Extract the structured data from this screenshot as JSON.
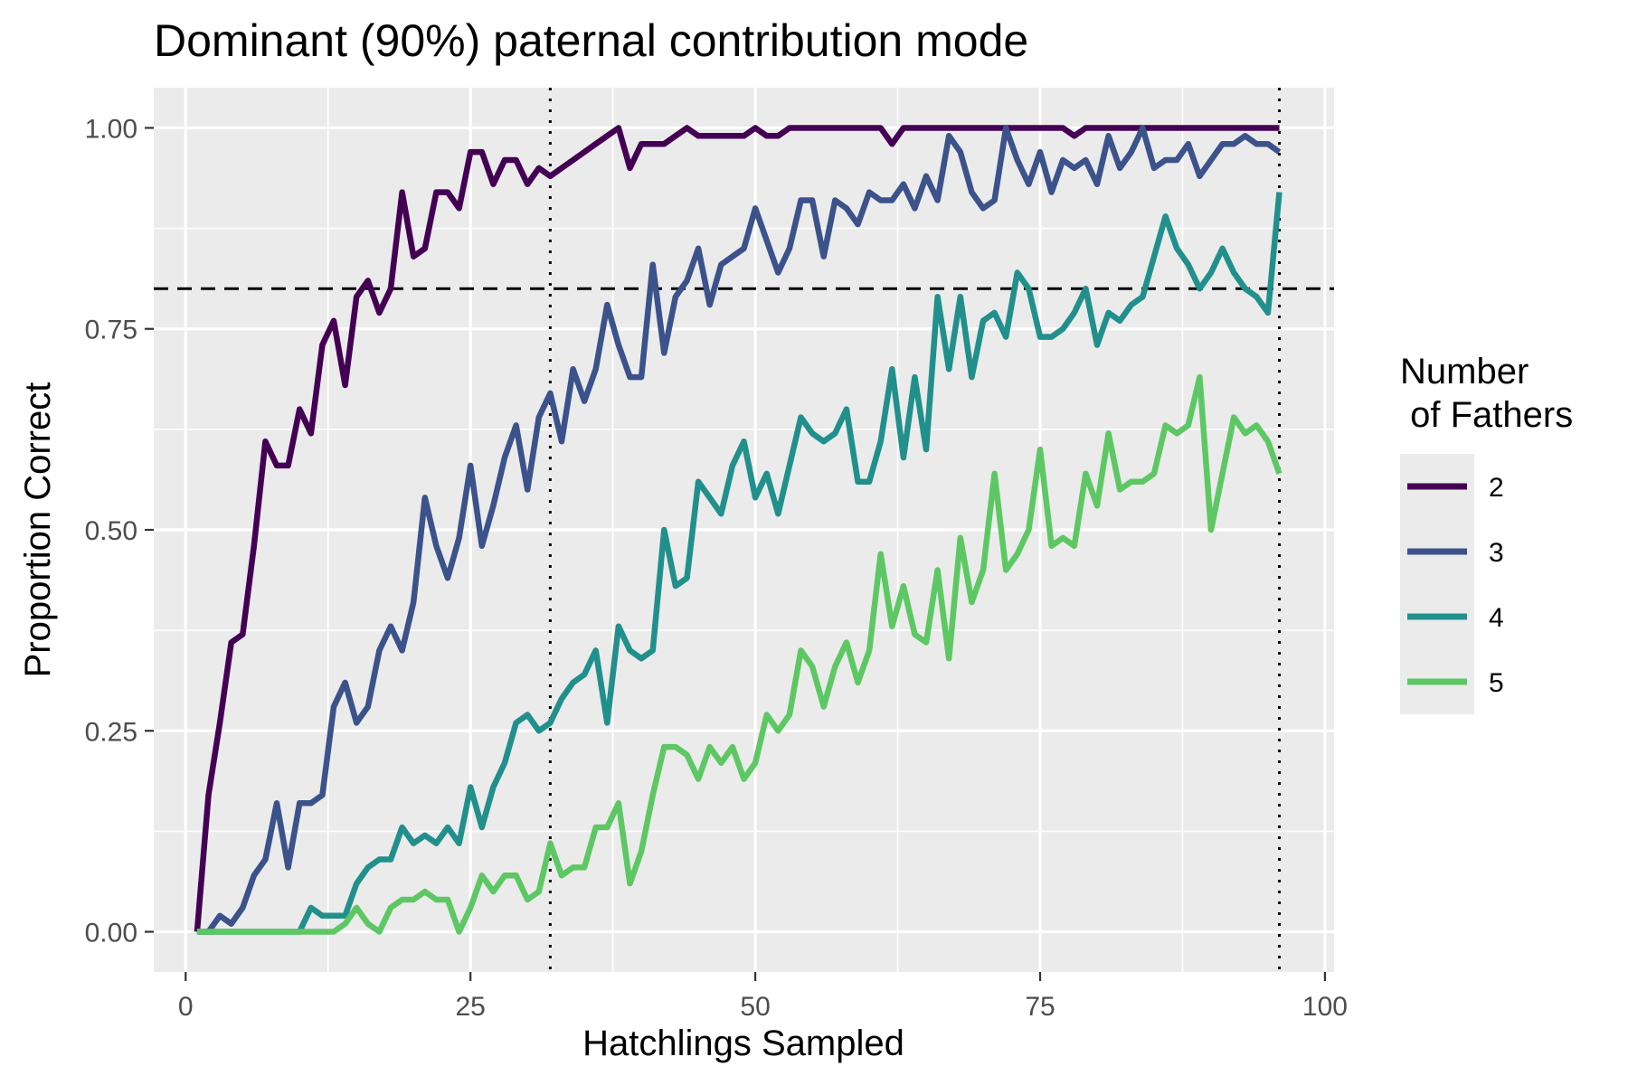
{
  "chart_data": {
    "type": "line",
    "title": "Dominant (90%) paternal contribution mode",
    "xlabel": "Hatchlings Sampled",
    "ylabel": "Proportion Correct",
    "xlim": [
      -2.8,
      100.8
    ],
    "ylim": [
      -0.05,
      1.05
    ],
    "xticks": [
      0,
      25,
      50,
      75,
      100
    ],
    "xtick_labels": [
      "0",
      "25",
      "50",
      "75",
      "100"
    ],
    "yticks": [
      0,
      0.25,
      0.5,
      0.75,
      1.0
    ],
    "ytick_labels": [
      "0.00",
      "0.25",
      "0.50",
      "0.75",
      "1.00"
    ],
    "grid": true,
    "legend": {
      "title_line1": "Number",
      "title_line2": " of Fathers",
      "position": "right"
    },
    "reference_lines": [
      {
        "orientation": "horizontal",
        "value": 0.8,
        "style": "dashed"
      },
      {
        "orientation": "vertical",
        "value": 32,
        "style": "dotted"
      },
      {
        "orientation": "vertical",
        "value": 96,
        "style": "dotted"
      }
    ],
    "x": [
      1,
      2,
      3,
      4,
      5,
      6,
      7,
      8,
      9,
      10,
      11,
      12,
      13,
      14,
      15,
      16,
      17,
      18,
      19,
      20,
      21,
      22,
      23,
      24,
      25,
      26,
      27,
      28,
      29,
      30,
      31,
      32,
      33,
      34,
      35,
      36,
      37,
      38,
      39,
      40,
      41,
      42,
      43,
      44,
      45,
      46,
      47,
      48,
      49,
      50,
      51,
      52,
      53,
      54,
      55,
      56,
      57,
      58,
      59,
      60,
      61,
      62,
      63,
      64,
      65,
      66,
      67,
      68,
      69,
      70,
      71,
      72,
      73,
      74,
      75,
      76,
      77,
      78,
      79,
      80,
      81,
      82,
      83,
      84,
      85,
      86,
      87,
      88,
      89,
      90,
      91,
      92,
      93,
      94,
      95,
      96
    ],
    "series": [
      {
        "name": "2",
        "color": "#440154",
        "values": [
          0.0,
          0.17,
          0.26,
          0.36,
          0.37,
          0.48,
          0.61,
          0.58,
          0.58,
          0.65,
          0.62,
          0.73,
          0.76,
          0.68,
          0.79,
          0.81,
          0.77,
          0.8,
          0.92,
          0.84,
          0.85,
          0.92,
          0.92,
          0.9,
          0.97,
          0.97,
          0.93,
          0.96,
          0.96,
          0.93,
          0.95,
          0.94,
          0.95,
          0.96,
          0.97,
          0.98,
          0.99,
          1.0,
          0.95,
          0.98,
          0.98,
          0.98,
          0.99,
          1.0,
          0.99,
          0.99,
          0.99,
          0.99,
          0.99,
          1.0,
          0.99,
          0.99,
          1.0,
          1.0,
          1.0,
          1.0,
          1.0,
          1.0,
          1.0,
          1.0,
          1.0,
          0.98,
          1.0,
          1.0,
          1.0,
          1.0,
          1.0,
          1.0,
          1.0,
          1.0,
          1.0,
          1.0,
          1.0,
          1.0,
          1.0,
          1.0,
          1.0,
          0.99,
          1.0,
          1.0,
          1.0,
          1.0,
          1.0,
          1.0,
          1.0,
          1.0,
          1.0,
          1.0,
          1.0,
          1.0,
          1.0,
          1.0,
          1.0,
          1.0,
          1.0,
          1.0
        ]
      },
      {
        "name": "3",
        "color": "#3b528b",
        "values": [
          0.0,
          0.0,
          0.02,
          0.01,
          0.03,
          0.07,
          0.09,
          0.16,
          0.08,
          0.16,
          0.16,
          0.17,
          0.28,
          0.31,
          0.26,
          0.28,
          0.35,
          0.38,
          0.35,
          0.41,
          0.54,
          0.48,
          0.44,
          0.49,
          0.58,
          0.48,
          0.53,
          0.59,
          0.63,
          0.55,
          0.64,
          0.67,
          0.61,
          0.7,
          0.66,
          0.7,
          0.78,
          0.73,
          0.69,
          0.69,
          0.83,
          0.72,
          0.79,
          0.81,
          0.85,
          0.78,
          0.83,
          0.84,
          0.85,
          0.9,
          0.86,
          0.82,
          0.85,
          0.91,
          0.91,
          0.84,
          0.91,
          0.9,
          0.88,
          0.92,
          0.91,
          0.91,
          0.93,
          0.9,
          0.94,
          0.91,
          0.99,
          0.97,
          0.92,
          0.9,
          0.91,
          1.0,
          0.96,
          0.93,
          0.97,
          0.92,
          0.96,
          0.95,
          0.96,
          0.93,
          0.99,
          0.95,
          0.97,
          1.0,
          0.95,
          0.96,
          0.96,
          0.98,
          0.94,
          0.96,
          0.98,
          0.98,
          0.99,
          0.98,
          0.98,
          0.97
        ]
      },
      {
        "name": "4",
        "color": "#21908c",
        "values": [
          0.0,
          0.0,
          0.0,
          0.0,
          0.0,
          0.0,
          0.0,
          0.0,
          0.0,
          0.0,
          0.03,
          0.02,
          0.02,
          0.02,
          0.06,
          0.08,
          0.09,
          0.09,
          0.13,
          0.11,
          0.12,
          0.11,
          0.13,
          0.11,
          0.18,
          0.13,
          0.18,
          0.21,
          0.26,
          0.27,
          0.25,
          0.26,
          0.29,
          0.31,
          0.32,
          0.35,
          0.26,
          0.38,
          0.35,
          0.34,
          0.35,
          0.5,
          0.43,
          0.44,
          0.56,
          0.54,
          0.52,
          0.58,
          0.61,
          0.54,
          0.57,
          0.52,
          0.58,
          0.64,
          0.62,
          0.61,
          0.62,
          0.65,
          0.56,
          0.56,
          0.61,
          0.7,
          0.59,
          0.69,
          0.6,
          0.79,
          0.7,
          0.79,
          0.69,
          0.76,
          0.77,
          0.74,
          0.82,
          0.8,
          0.74,
          0.74,
          0.75,
          0.77,
          0.8,
          0.73,
          0.77,
          0.76,
          0.78,
          0.79,
          0.84,
          0.89,
          0.85,
          0.83,
          0.8,
          0.82,
          0.85,
          0.82,
          0.8,
          0.79,
          0.77,
          0.92
        ]
      },
      {
        "name": "5",
        "color": "#5dc863",
        "values": [
          0.0,
          0.0,
          0.0,
          0.0,
          0.0,
          0.0,
          0.0,
          0.0,
          0.0,
          0.0,
          0.0,
          0.0,
          0.0,
          0.01,
          0.03,
          0.01,
          0.0,
          0.03,
          0.04,
          0.04,
          0.05,
          0.04,
          0.04,
          0.0,
          0.03,
          0.07,
          0.05,
          0.07,
          0.07,
          0.04,
          0.05,
          0.11,
          0.07,
          0.08,
          0.08,
          0.13,
          0.13,
          0.16,
          0.06,
          0.1,
          0.17,
          0.23,
          0.23,
          0.22,
          0.19,
          0.23,
          0.21,
          0.23,
          0.19,
          0.21,
          0.27,
          0.25,
          0.27,
          0.35,
          0.33,
          0.28,
          0.33,
          0.36,
          0.31,
          0.35,
          0.47,
          0.38,
          0.43,
          0.37,
          0.36,
          0.45,
          0.34,
          0.49,
          0.41,
          0.45,
          0.57,
          0.45,
          0.47,
          0.5,
          0.6,
          0.48,
          0.49,
          0.48,
          0.57,
          0.53,
          0.62,
          0.55,
          0.56,
          0.56,
          0.57,
          0.63,
          0.62,
          0.63,
          0.69,
          0.5,
          0.57,
          0.64,
          0.62,
          0.63,
          0.61,
          0.57
        ]
      }
    ]
  }
}
